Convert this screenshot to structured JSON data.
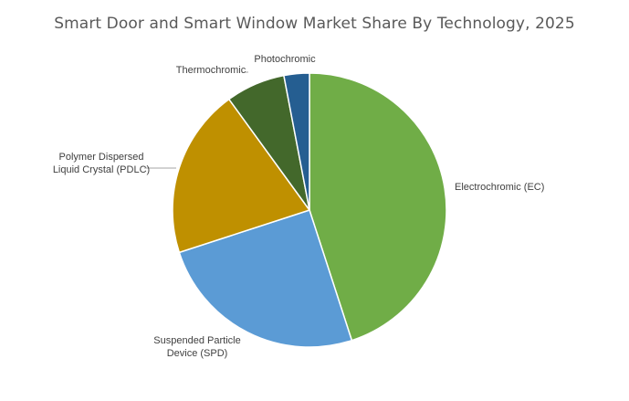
{
  "chart_data": {
    "type": "pie",
    "title": "Smart Door and Smart Window Market Share By Technology, 2025",
    "categories": [
      "Electrochromic (EC)",
      "Suspended Particle Device (SPD)",
      "Polymer Dispersed Liquid Crystal (PDLC)",
      "Thermochromic",
      "Photochromic"
    ],
    "values": [
      45,
      25,
      20,
      7,
      3
    ],
    "unit": "%",
    "colors": [
      "#70AD47",
      "#5B9BD5",
      "#BF9000",
      "#43682B",
      "#255E91"
    ],
    "start_angle_deg": 0,
    "direction": "clockwise",
    "legend": "none",
    "data_labels": "category names outside slices",
    "label_lines": [
      [
        "Electrochromic (EC)"
      ],
      [
        "Suspended Particle",
        "Device (SPD)"
      ],
      [
        "Polymer Dispersed",
        "Liquid Crystal (PDLC)"
      ],
      [
        "Thermochromic"
      ],
      [
        "Photochromic"
      ]
    ]
  }
}
